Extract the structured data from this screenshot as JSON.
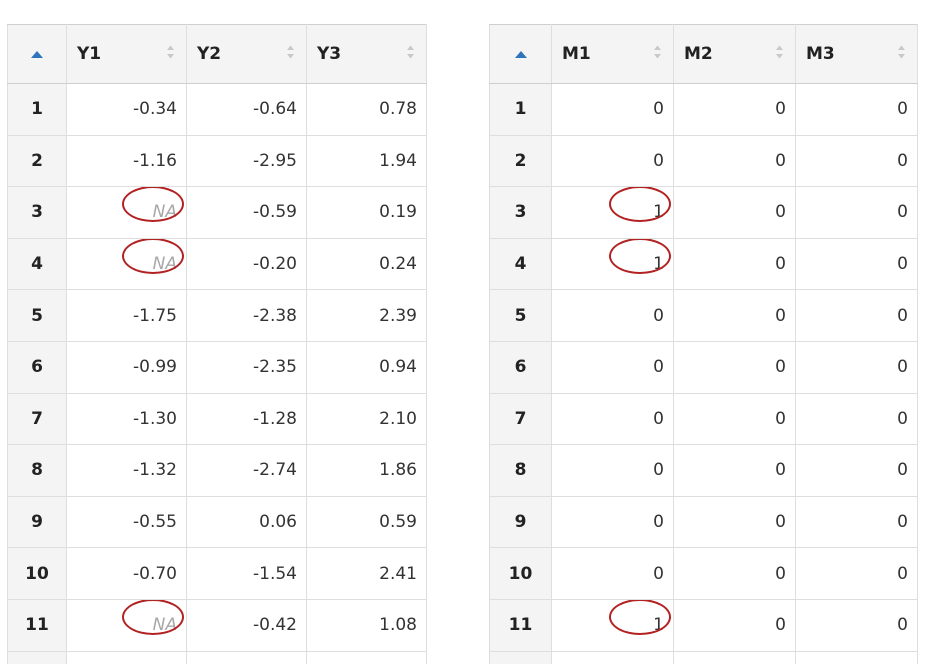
{
  "left_grid": {
    "columns": [
      "Y1",
      "Y2",
      "Y3"
    ],
    "rows": [
      {
        "n": "1",
        "c": [
          "-0.34",
          "-0.64",
          "0.78"
        ]
      },
      {
        "n": "2",
        "c": [
          "-1.16",
          "-2.95",
          "1.94"
        ]
      },
      {
        "n": "3",
        "c": [
          "NA",
          "-0.59",
          "0.19"
        ]
      },
      {
        "n": "4",
        "c": [
          "NA",
          "-0.20",
          "0.24"
        ]
      },
      {
        "n": "5",
        "c": [
          "-1.75",
          "-2.38",
          "2.39"
        ]
      },
      {
        "n": "6",
        "c": [
          "-0.99",
          "-2.35",
          "0.94"
        ]
      },
      {
        "n": "7",
        "c": [
          "-1.30",
          "-1.28",
          "2.10"
        ]
      },
      {
        "n": "8",
        "c": [
          "-1.32",
          "-2.74",
          "1.86"
        ]
      },
      {
        "n": "9",
        "c": [
          "-0.55",
          "0.06",
          "0.59"
        ]
      },
      {
        "n": "10",
        "c": [
          "-0.70",
          "-1.54",
          "2.41"
        ]
      },
      {
        "n": "11",
        "c": [
          "NA",
          "-0.42",
          "1.08"
        ]
      }
    ]
  },
  "right_grid": {
    "columns": [
      "M1",
      "M2",
      "M3"
    ],
    "rows": [
      {
        "n": "1",
        "c": [
          "0",
          "0",
          "0"
        ]
      },
      {
        "n": "2",
        "c": [
          "0",
          "0",
          "0"
        ]
      },
      {
        "n": "3",
        "c": [
          "1",
          "0",
          "0"
        ]
      },
      {
        "n": "4",
        "c": [
          "1",
          "0",
          "0"
        ]
      },
      {
        "n": "5",
        "c": [
          "0",
          "0",
          "0"
        ]
      },
      {
        "n": "6",
        "c": [
          "0",
          "0",
          "0"
        ]
      },
      {
        "n": "7",
        "c": [
          "0",
          "0",
          "0"
        ]
      },
      {
        "n": "8",
        "c": [
          "0",
          "0",
          "0"
        ]
      },
      {
        "n": "9",
        "c": [
          "0",
          "0",
          "0"
        ]
      },
      {
        "n": "10",
        "c": [
          "0",
          "0",
          "0"
        ]
      },
      {
        "n": "11",
        "c": [
          "1",
          "0",
          "0"
        ]
      }
    ]
  },
  "highlighted_rows": [
    3,
    4,
    11
  ],
  "icons": {
    "corner_sort": "sort-ascending-icon",
    "column_sort": "sort-unsorted-icon"
  },
  "colors": {
    "highlight_circle": "#b22222",
    "sort_active": "#2e74bb",
    "sort_inactive": "#c8c8c8",
    "na_text": "#a8a8a8",
    "header_bg": "#f4f4f4",
    "grid_line": "#dedede"
  }
}
